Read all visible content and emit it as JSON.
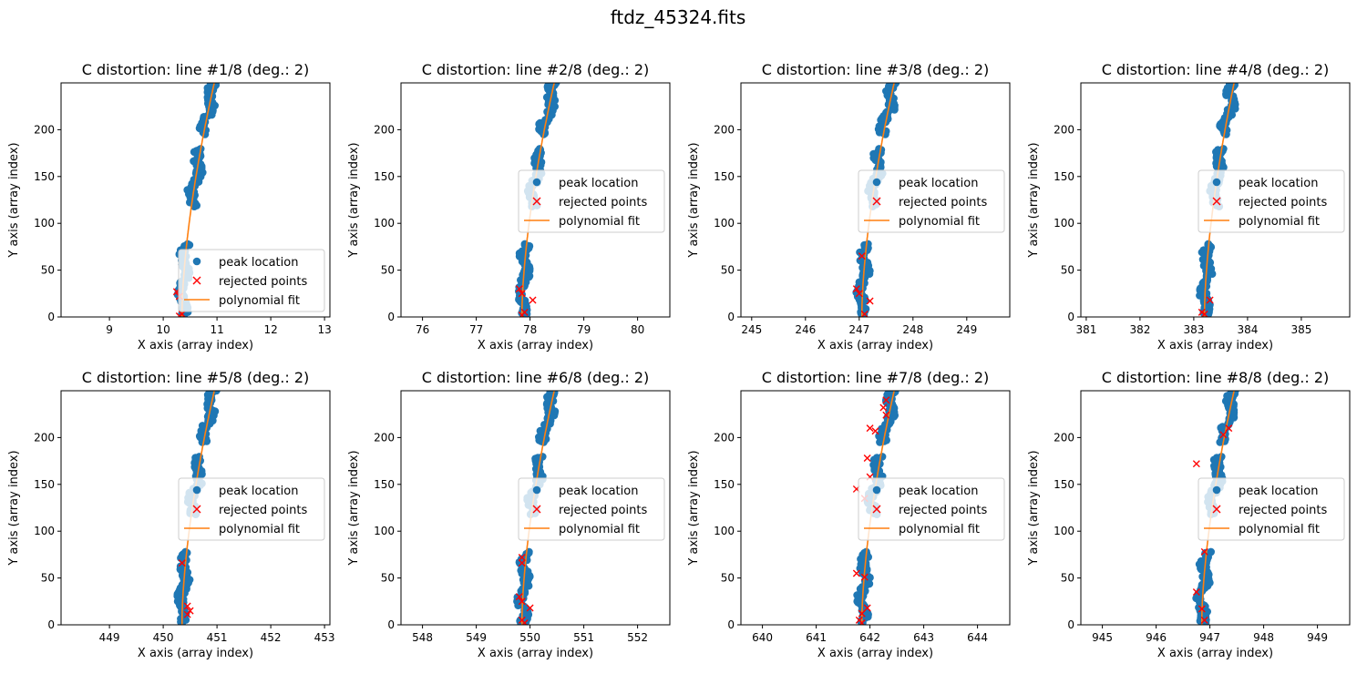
{
  "figure_title": "ftdz_45324.fits",
  "colors": {
    "peak": "#1f77b4",
    "rejected": "#ff0000",
    "fit": "#ff7f0e"
  },
  "chart_data": [
    {
      "type": "scatter",
      "title": "C distortion: line #1/8 (deg.: 2)",
      "xlabel": "X axis (array index)",
      "ylabel": "Y axis (array index)",
      "xlim": [
        8.1,
        13.1
      ],
      "ylim": [
        0,
        250
      ],
      "xticks": [
        9,
        10,
        11,
        12,
        13
      ],
      "yticks": [
        0,
        50,
        100,
        150,
        200
      ],
      "x_at_y0": 10.35,
      "x_at_ytop": 10.95,
      "legend_loc": "lower right",
      "series": [
        {
          "name": "peak location"
        },
        {
          "name": "rejected points"
        },
        {
          "name": "polynomial fit"
        }
      ],
      "rejected_points": [
        [
          10.25,
          27
        ],
        [
          10.3,
          22
        ],
        [
          10.35,
          3
        ],
        [
          10.3,
          1
        ]
      ]
    },
    {
      "type": "scatter",
      "title": "C distortion: line #2/8 (deg.: 2)",
      "xlabel": "X axis (array index)",
      "ylabel": "Y axis (array index)",
      "xlim": [
        75.6,
        80.6
      ],
      "ylim": [
        0,
        250
      ],
      "xticks": [
        76,
        77,
        78,
        79,
        80
      ],
      "yticks": [
        0,
        50,
        100,
        150,
        200
      ],
      "x_at_y0": 77.85,
      "x_at_ytop": 78.45,
      "legend_loc": "center right",
      "series": [
        {
          "name": "peak location"
        },
        {
          "name": "rejected points"
        },
        {
          "name": "polynomial fit"
        }
      ],
      "rejected_points": [
        [
          77.8,
          30
        ],
        [
          77.85,
          25
        ],
        [
          78.05,
          18
        ],
        [
          77.9,
          5
        ],
        [
          77.85,
          2
        ]
      ]
    },
    {
      "type": "scatter",
      "title": "C distortion: line #3/8 (deg.: 2)",
      "xlabel": "X axis (array index)",
      "ylabel": "Y axis (array index)",
      "xlim": [
        244.8,
        249.8
      ],
      "ylim": [
        0,
        250
      ],
      "xticks": [
        245,
        246,
        247,
        248,
        249
      ],
      "yticks": [
        0,
        50,
        100,
        150,
        200
      ],
      "x_at_y0": 247.05,
      "x_at_ytop": 247.65,
      "legend_loc": "center right",
      "series": [
        {
          "name": "peak location"
        },
        {
          "name": "rejected points"
        },
        {
          "name": "polynomial fit"
        }
      ],
      "rejected_points": [
        [
          247.05,
          65
        ],
        [
          246.95,
          30
        ],
        [
          247.0,
          25
        ],
        [
          247.2,
          17
        ],
        [
          247.1,
          3
        ]
      ]
    },
    {
      "type": "scatter",
      "title": "C distortion: line #4/8 (deg.: 2)",
      "xlabel": "X axis (array index)",
      "ylabel": "Y axis (array index)",
      "xlim": [
        380.9,
        385.9
      ],
      "ylim": [
        0,
        250
      ],
      "xticks": [
        381,
        382,
        383,
        384,
        385
      ],
      "yticks": [
        0,
        50,
        100,
        150,
        200
      ],
      "x_at_y0": 383.2,
      "x_at_ytop": 383.75,
      "legend_loc": "center right",
      "series": [
        {
          "name": "peak location"
        },
        {
          "name": "rejected points"
        },
        {
          "name": "polynomial fit"
        }
      ],
      "rejected_points": [
        [
          383.3,
          18
        ],
        [
          383.15,
          5
        ],
        [
          383.2,
          3
        ]
      ]
    },
    {
      "type": "scatter",
      "title": "C distortion: line #5/8 (deg.: 2)",
      "xlabel": "X axis (array index)",
      "ylabel": "Y axis (array index)",
      "xlim": [
        448.1,
        453.1
      ],
      "ylim": [
        0,
        250
      ],
      "xticks": [
        449,
        450,
        451,
        452,
        453
      ],
      "yticks": [
        0,
        50,
        100,
        150,
        200
      ],
      "x_at_y0": 450.35,
      "x_at_ytop": 450.95,
      "legend_loc": "center right",
      "series": [
        {
          "name": "peak location"
        },
        {
          "name": "rejected points"
        },
        {
          "name": "polynomial fit"
        }
      ],
      "rejected_points": [
        [
          450.35,
          66
        ],
        [
          450.45,
          20
        ],
        [
          450.5,
          15
        ],
        [
          450.45,
          11
        ]
      ]
    },
    {
      "type": "scatter",
      "title": "C distortion: line #6/8 (deg.: 2)",
      "xlabel": "X axis (array index)",
      "ylabel": "Y axis (array index)",
      "xlim": [
        547.6,
        552.6
      ],
      "ylim": [
        0,
        250
      ],
      "xticks": [
        548,
        549,
        550,
        551,
        552
      ],
      "yticks": [
        0,
        50,
        100,
        150,
        200
      ],
      "x_at_y0": 549.85,
      "x_at_ytop": 550.45,
      "legend_loc": "center right",
      "series": [
        {
          "name": "peak location"
        },
        {
          "name": "rejected points"
        },
        {
          "name": "polynomial fit"
        }
      ],
      "rejected_points": [
        [
          549.85,
          72
        ],
        [
          549.85,
          66
        ],
        [
          549.8,
          30
        ],
        [
          549.85,
          25
        ],
        [
          550.0,
          18
        ],
        [
          549.85,
          5
        ],
        [
          549.9,
          2
        ]
      ]
    },
    {
      "type": "scatter",
      "title": "C distortion: line #7/8 (deg.: 2)",
      "xlabel": "X axis (array index)",
      "ylabel": "Y axis (array index)",
      "xlim": [
        639.6,
        644.6
      ],
      "ylim": [
        0,
        250
      ],
      "xticks": [
        640,
        641,
        642,
        643,
        644
      ],
      "yticks": [
        0,
        50,
        100,
        150,
        200
      ],
      "x_at_y0": 641.85,
      "x_at_ytop": 642.45,
      "legend_loc": "center right",
      "series": [
        {
          "name": "peak location"
        },
        {
          "name": "rejected points"
        },
        {
          "name": "polynomial fit"
        }
      ],
      "rejected_points": [
        [
          642.3,
          240
        ],
        [
          642.25,
          232
        ],
        [
          642.3,
          224
        ],
        [
          642.0,
          210
        ],
        [
          642.1,
          207
        ],
        [
          641.95,
          178
        ],
        [
          642.0,
          158
        ],
        [
          641.75,
          145
        ],
        [
          641.9,
          135
        ],
        [
          641.75,
          55
        ],
        [
          641.9,
          51
        ],
        [
          641.95,
          18
        ],
        [
          641.85,
          12
        ],
        [
          641.8,
          5
        ],
        [
          641.85,
          2
        ]
      ]
    },
    {
      "type": "scatter",
      "title": "C distortion: line #8/8 (deg.: 2)",
      "xlabel": "X axis (array index)",
      "ylabel": "Y axis (array index)",
      "xlim": [
        944.6,
        949.6
      ],
      "ylim": [
        0,
        250
      ],
      "xticks": [
        945,
        946,
        947,
        948,
        949
      ],
      "yticks": [
        0,
        50,
        100,
        150,
        200
      ],
      "x_at_y0": 946.85,
      "x_at_ytop": 947.45,
      "legend_loc": "center right",
      "series": [
        {
          "name": "peak location"
        },
        {
          "name": "rejected points"
        },
        {
          "name": "polynomial fit"
        }
      ],
      "rejected_points": [
        [
          947.35,
          210
        ],
        [
          947.25,
          203
        ],
        [
          946.75,
          172
        ],
        [
          946.9,
          78
        ],
        [
          946.75,
          35
        ],
        [
          946.85,
          17
        ],
        [
          946.9,
          5
        ]
      ]
    }
  ]
}
